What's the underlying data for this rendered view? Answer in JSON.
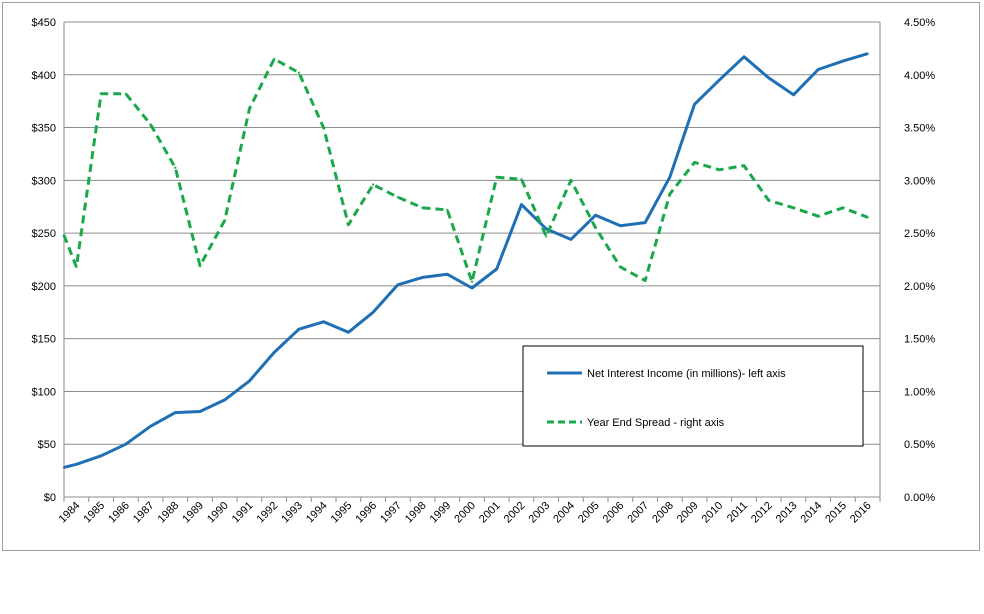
{
  "chart_data": {
    "type": "line",
    "title": "",
    "xlabel": "",
    "ylabel": "",
    "categories": [
      "1984",
      "1985",
      "1986",
      "1987",
      "1988",
      "1989",
      "1990",
      "1991",
      "1992",
      "1993",
      "1994",
      "1995",
      "1996",
      "1997",
      "1998",
      "1999",
      "2000",
      "2001",
      "2002",
      "2003",
      "2004",
      "2005",
      "2006",
      "2007",
      "2008",
      "2009",
      "2010",
      "2011",
      "2012",
      "2013",
      "2014",
      "2015",
      "2016"
    ],
    "left_axis": {
      "ylim": [
        0,
        450
      ],
      "ticks": [
        0,
        50,
        100,
        150,
        200,
        250,
        300,
        350,
        400,
        450
      ],
      "tick_labels": [
        "$0",
        "$50",
        "$100",
        "$150",
        "$200",
        "$250",
        "$300",
        "$350",
        "$400",
        "$450"
      ]
    },
    "right_axis": {
      "ylim": [
        0,
        4.5
      ],
      "ticks": [
        0,
        0.5,
        1.0,
        1.5,
        2.0,
        2.5,
        3.0,
        3.5,
        4.0,
        4.5
      ],
      "tick_labels": [
        "0.00%",
        "0.50%",
        "1.00%",
        "1.50%",
        "2.00%",
        "2.50%",
        "3.00%",
        "3.50%",
        "4.00%",
        "4.50%"
      ]
    },
    "series": [
      {
        "name": "Net Interest Income (in millions)- left axis",
        "axis": "left",
        "color": "#1f6fb5",
        "style": "solid",
        "x": [
          0,
          0.5,
          1.5,
          2.5,
          3.5,
          4.5,
          5.5,
          6.5,
          7.5,
          8.5,
          9.5,
          10.5,
          11.5,
          12.5,
          13.5,
          14.5,
          15.5,
          16.5,
          17.5,
          18.5,
          19.5,
          20.5,
          21.5,
          22.5,
          23.5,
          24.5,
          25.5,
          26.5,
          27.5,
          28.5,
          29.5,
          30.5,
          31.5,
          32.5
        ],
        "values": [
          28,
          31,
          39,
          50,
          67,
          80,
          81,
          92,
          110,
          137,
          159,
          166,
          156,
          175,
          201,
          208,
          211,
          198,
          216,
          277,
          254,
          244,
          267,
          257,
          260,
          303,
          372,
          395,
          417,
          397,
          381,
          405,
          413,
          420
        ]
      },
      {
        "name": "Year End Spread - right axis",
        "axis": "right",
        "color": "#1aa84a",
        "style": "dashed",
        "x": [
          0,
          0.5,
          1.5,
          2.5,
          3.5,
          4.5,
          5.5,
          6.5,
          7.5,
          8.5,
          9.5,
          10.5,
          11.5,
          12.5,
          13.5,
          14.5,
          15.5,
          16.5,
          17.5,
          18.5,
          19.5,
          20.5,
          21.5,
          22.5,
          23.5,
          24.5,
          25.5,
          26.5,
          27.5,
          28.5,
          29.5,
          30.5,
          31.5,
          32.5
        ],
        "values": [
          2.48,
          2.18,
          3.82,
          3.82,
          3.53,
          3.12,
          2.19,
          2.62,
          3.68,
          4.15,
          4.02,
          3.5,
          2.58,
          2.96,
          2.84,
          2.74,
          2.72,
          2.04,
          3.03,
          3.01,
          2.47,
          3.0,
          2.55,
          2.18,
          2.05,
          2.87,
          3.17,
          3.1,
          3.14,
          2.81,
          2.74,
          2.66,
          2.74,
          2.65
        ]
      }
    ],
    "legend": {
      "placement": "center-right",
      "entries": [
        "Net Interest Income (in millions)- left axis",
        "Year End Spread - right axis"
      ]
    },
    "grid": true
  }
}
